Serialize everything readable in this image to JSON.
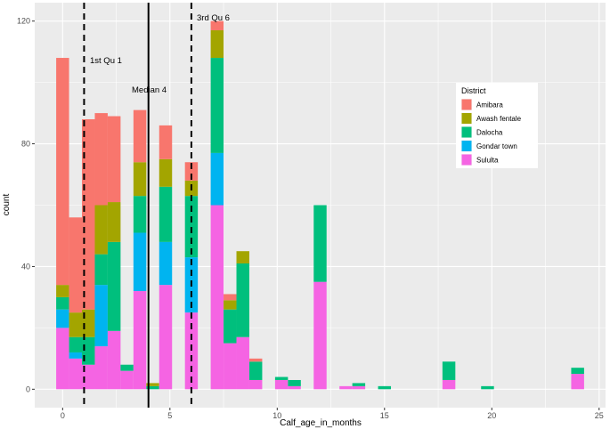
{
  "chart_data": {
    "type": "bar",
    "stacked": true,
    "xlabel": "Calf_age_in_months",
    "ylabel": "count",
    "xlim": [
      -1.3,
      25.3
    ],
    "ylim": [
      -6,
      126
    ],
    "x_ticks": [
      0,
      5,
      10,
      15,
      20,
      25
    ],
    "y_ticks": [
      0,
      40,
      80,
      120
    ],
    "grid": true,
    "bin_width": 0.6,
    "x": [
      0,
      0.6,
      1.2,
      1.8,
      2.4,
      3,
      3.6,
      4.2,
      4.8,
      6,
      7.2,
      7.8,
      8.4,
      9,
      10.2,
      10.8,
      12,
      13.2,
      13.8,
      15,
      18,
      19.8,
      24
    ],
    "series": [
      {
        "name": "Sululta",
        "color": "#F564E3",
        "values": [
          20,
          10,
          8,
          14,
          19,
          6,
          32,
          0,
          34,
          25,
          60,
          15,
          17,
          3,
          3,
          1,
          35,
          1,
          1,
          0,
          3,
          0,
          5
        ]
      },
      {
        "name": "Gondar town",
        "color": "#00B4F0",
        "values": [
          6,
          2,
          0,
          20,
          0,
          0,
          19,
          0,
          14,
          18,
          17,
          0,
          0,
          0,
          0,
          0,
          0,
          0,
          0,
          0,
          0,
          0,
          0
        ]
      },
      {
        "name": "Dalocha",
        "color": "#00BF7D",
        "values": [
          4,
          5,
          9,
          10,
          29,
          2,
          12,
          1,
          18,
          20,
          31,
          11,
          24,
          6,
          1,
          2,
          25,
          0,
          1,
          1,
          6,
          1,
          2
        ]
      },
      {
        "name": "Awash fentale",
        "color": "#A3A500",
        "values": [
          4,
          8,
          9,
          16,
          13,
          0,
          11,
          1,
          9,
          5,
          9,
          3,
          4,
          0,
          0,
          0,
          0,
          0,
          0,
          0,
          0,
          0,
          0
        ]
      },
      {
        "name": "Amibara",
        "color": "#F8766D",
        "values": [
          74,
          31,
          62,
          30,
          28,
          0,
          17,
          0,
          11,
          6,
          3,
          2,
          0,
          1,
          0,
          0,
          0,
          0,
          0,
          0,
          0,
          0,
          0
        ]
      }
    ],
    "legend": {
      "title": "District",
      "placement": "right",
      "entries": [
        {
          "name": "Amibara",
          "color": "#F8766D"
        },
        {
          "name": "Awash fentale",
          "color": "#A3A500"
        },
        {
          "name": "Dalocha",
          "color": "#00BF7D"
        },
        {
          "name": "Gondar town",
          "color": "#00B4F0"
        },
        {
          "name": "Sululta",
          "color": "#F564E3"
        }
      ]
    },
    "reference_lines": [
      {
        "x": 1,
        "style": "dashed",
        "label": "1st Qu  1"
      },
      {
        "x": 4,
        "style": "solid",
        "label": "Median 4"
      },
      {
        "x": 6,
        "style": "dashed",
        "label": "3rd Qu  6"
      }
    ]
  }
}
